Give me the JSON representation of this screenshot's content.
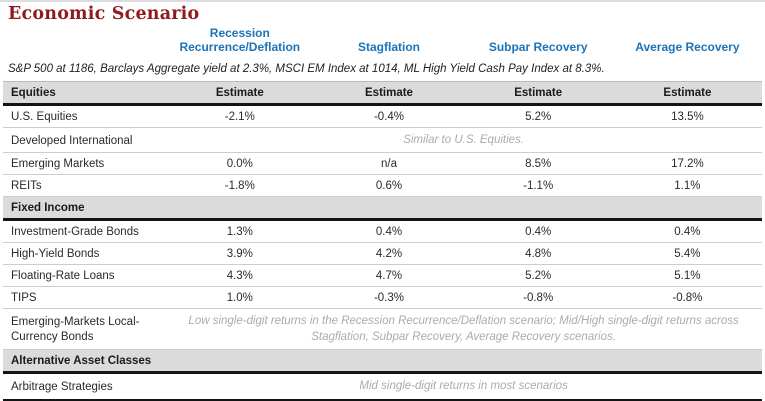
{
  "title": "Economic Scenario",
  "subtitle": "S&P 500 at 1186, Barclays Aggregate yield at 2.3%, MSCI EM Index at 1014, ML High Yield Cash Pay Index at 8.3%.",
  "estimate_label": "Estimate",
  "scenarios": [
    "Recession Recurrence/Deflation",
    "Stagflation",
    "Subpar Recovery",
    "Average Recovery"
  ],
  "colors": {
    "title_red": "#8e1b1e",
    "scenario_blue": "#1c74b8",
    "band_gray": "#dbdbdb",
    "note_gray": "#ababab",
    "thick_rule": "#141414"
  },
  "sections": [
    {
      "name": "Equities",
      "rows": [
        {
          "label": "U.S. Equities",
          "values": [
            "-2.1%",
            "-0.4%",
            "5.2%",
            "13.5%"
          ]
        },
        {
          "label": "Developed International",
          "note": "Similar to U.S. Equities."
        },
        {
          "label": "Emerging Markets",
          "values": [
            "0.0%",
            "n/a",
            "8.5%",
            "17.2%"
          ]
        },
        {
          "label": "REITs",
          "values": [
            "-1.8%",
            "0.6%",
            "-1.1%",
            "1.1%"
          ]
        }
      ]
    },
    {
      "name": "Fixed Income",
      "rows": [
        {
          "label": "Investment-Grade Bonds",
          "values": [
            "1.3%",
            "0.4%",
            "0.4%",
            "0.4%"
          ]
        },
        {
          "label": "High-Yield Bonds",
          "values": [
            "3.9%",
            "4.2%",
            "4.8%",
            "5.4%"
          ]
        },
        {
          "label": "Floating-Rate Loans",
          "values": [
            "4.3%",
            "4.7%",
            "5.2%",
            "5.1%"
          ]
        },
        {
          "label": "TIPS",
          "values": [
            "1.0%",
            "-0.3%",
            "-0.8%",
            "-0.8%"
          ]
        },
        {
          "label": "Emerging-Markets Local-Currency Bonds",
          "note": "Low single-digit returns in the Recession Recurrence/Deflation scenario; Mid/High single-digit returns across Stagflation, Subpar Recovery, Average Recovery scenarios."
        }
      ]
    },
    {
      "name": "Alternative Asset Classes",
      "rows": [
        {
          "label": "Arbitrage Strategies",
          "note": "Mid single-digit returns in most scenarios"
        }
      ]
    }
  ]
}
